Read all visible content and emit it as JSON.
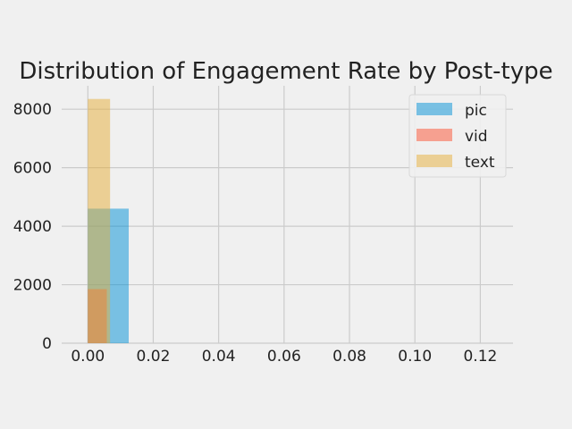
{
  "chart_data": {
    "type": "bar",
    "subtype": "histogram-overlay",
    "title": "Distribution of Engagement Rate by Post-type",
    "xlabel": "",
    "ylabel": "",
    "xlim": [
      -0.008,
      0.13
    ],
    "ylim": [
      0,
      8800
    ],
    "xticks": [
      0.0,
      0.02,
      0.04,
      0.06,
      0.08,
      0.1,
      0.12
    ],
    "xtick_labels": [
      "0.00",
      "0.02",
      "0.04",
      "0.06",
      "0.08",
      "0.10",
      "0.12"
    ],
    "yticks": [
      0,
      2000,
      4000,
      6000,
      8000
    ],
    "ytick_labels": [
      "0",
      "2000",
      "4000",
      "6000",
      "8000"
    ],
    "grid": true,
    "legend_position": "top-right",
    "bar_opacity": 0.5,
    "series": [
      {
        "name": "pic",
        "color": "#008fd5",
        "bins": [
          {
            "x0": 0.0,
            "x1": 0.0125,
            "count": 4600
          }
        ]
      },
      {
        "name": "vid",
        "color": "#fc4f30",
        "bins": [
          {
            "x0": 0.0,
            "x1": 0.0058,
            "count": 1850
          }
        ]
      },
      {
        "name": "text",
        "color": "#e5ae38",
        "bins": [
          {
            "x0": 0.0,
            "x1": 0.0068,
            "count": 8350
          }
        ]
      }
    ]
  }
}
